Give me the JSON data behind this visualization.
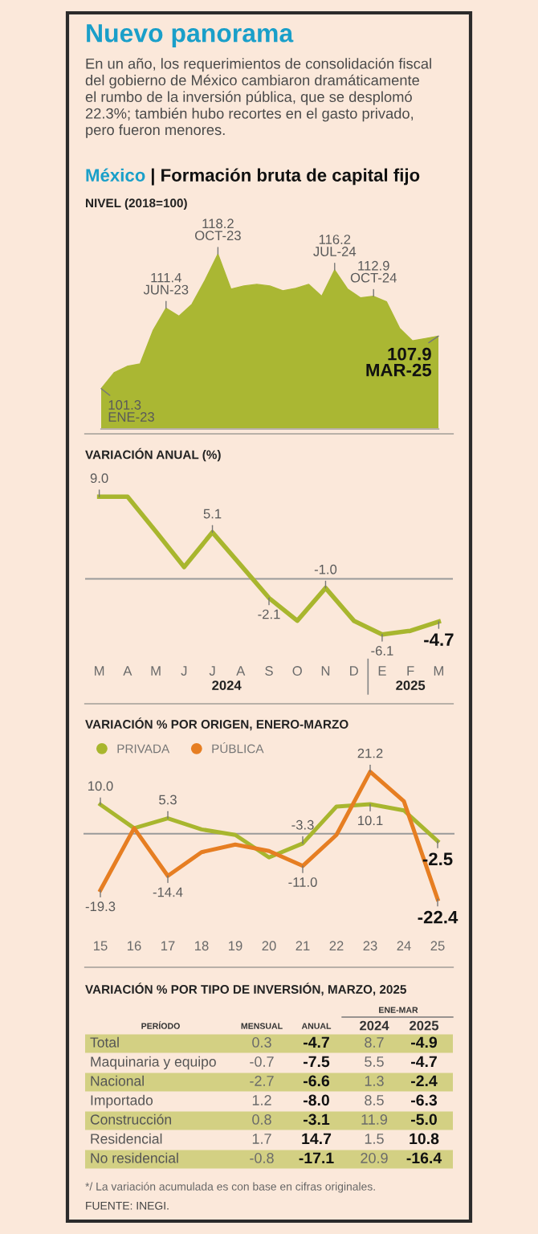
{
  "chart_data": [
    {
      "type": "area",
      "title": "Nuevo panorama",
      "subtitle": "En un año, los requerimientos de consolidación fiscal\ndel gobierno de México cambiaron dramáticamente\nel rumbo de la inversión pública, que se desplomó\n22.3%; también hubo recortes en el gasto privado,\npero fueron menores.",
      "annotations": [
        "México",
        "| Formación bruta de capital fijo"
      ],
      "ylabel": "NIVEL (2018=100)",
      "categories": [
        null,
        null,
        null,
        null,
        null,
        null,
        null,
        null,
        null,
        null,
        null,
        null,
        null,
        null,
        null,
        null,
        null,
        null,
        null,
        null,
        null,
        null,
        null,
        null,
        null,
        null,
        null
      ],
      "values": [
        101.3,
        103.3,
        104.1,
        104.4,
        108.6,
        111.4,
        110.4,
        111.9,
        114.9,
        118.2,
        113.8,
        114.2,
        114.4,
        114.2,
        113.6,
        113.9,
        114.4,
        112.9,
        116.2,
        113.8,
        112.7,
        112.9,
        112.2,
        108.9,
        107.3,
        107.6,
        107.9
      ],
      "value_labels": [
        "101.3\nENE-23",
        null,
        null,
        null,
        null,
        "111.4\nJUN-23",
        null,
        null,
        null,
        "118.2\nOCT-23",
        null,
        null,
        null,
        null,
        null,
        null,
        null,
        null,
        "116.2\nJUL-24",
        null,
        null,
        "112.9\nOCT-24",
        null,
        null,
        null,
        null,
        "107.9\nMAR-25"
      ],
      "color": "#aab733"
    },
    {
      "type": "line",
      "title": "VARIACIÓN ANUAL (%)",
      "categories": [
        "M",
        "A",
        "M",
        "J",
        "J",
        "A",
        "S",
        "O",
        "N",
        "D",
        "E",
        "F",
        "M"
      ],
      "values": [
        9.0,
        9.0,
        5.2,
        1.3,
        5.1,
        1.5,
        -2.1,
        -4.6,
        -1.0,
        -4.6,
        -6.1,
        -5.7,
        -4.7
      ],
      "value_labels": [
        "9.0",
        null,
        null,
        null,
        "5.1",
        null,
        "-2.1",
        null,
        "-1.0",
        null,
        "-6.1",
        null,
        "-4.7"
      ],
      "color": "#a8b62e",
      "ref_lines": [
        {
          "axis": "y",
          "value": 0,
          "color": "#9a9a9a"
        }
      ],
      "annotations": [
        "2024",
        "2025"
      ]
    },
    {
      "type": "line",
      "title": "VARIACIÓN % POR ORIGEN, ENERO-MARZO",
      "categories": [
        "15",
        "16",
        "17",
        "18",
        "19",
        "20",
        "21",
        "22",
        "23",
        "24",
        "25"
      ],
      "series": [
        {
          "name": "PRIVADA",
          "color": "#a8b62e",
          "values": [
            10.0,
            1.9,
            5.3,
            1.5,
            -0.4,
            -8.1,
            -3.3,
            9.3,
            10.1,
            8.0,
            -2.5
          ],
          "value_labels": [
            "10.0",
            null,
            "5.3",
            null,
            null,
            null,
            "-3.3",
            null,
            "10.1",
            null,
            "-2.5"
          ]
        },
        {
          "name": "PÚBLICA",
          "color": "#e67e22",
          "values": [
            -19.3,
            1.9,
            -14.4,
            -6.3,
            -3.7,
            -5.9,
            -11.0,
            -0.4,
            21.2,
            11.1,
            -22.4
          ],
          "value_labels": [
            "-19.3",
            null,
            "-14.4",
            null,
            null,
            null,
            "-11.0",
            null,
            "21.2",
            null,
            "-22.4"
          ]
        }
      ],
      "ref_lines": [
        {
          "axis": "y",
          "value": 0,
          "color": "#9a9a9a"
        }
      ],
      "legend": "top left"
    },
    {
      "type": "other",
      "data_labels": true,
      "title": "VARIACIÓN % POR TIPO DE INVERSIÓN, MARZO, 2025",
      "ylabel": "PERÍODO",
      "categories": [
        "MENSUAL",
        "ANUAL",
        "2024",
        "2025"
      ],
      "y_categories": [
        "Total",
        "Maquinaria y equipo",
        "Nacional",
        "Importado",
        "Construcción",
        "Residencial",
        "No residencial"
      ],
      "cell_labels": [
        [
          "0.3",
          "-4.7",
          "8.7",
          "-4.9"
        ],
        [
          "-0.7",
          "-7.5",
          "5.5",
          "-4.7"
        ],
        [
          "-2.7",
          "-6.6",
          "1.3",
          "-2.4"
        ],
        [
          "1.2",
          "-8.0",
          "8.5",
          "-6.3"
        ],
        [
          "0.8",
          "-3.1",
          "11.9",
          "-5.0"
        ],
        [
          "1.7",
          "14.7",
          "1.5",
          "10.8"
        ],
        [
          "-0.8",
          "-17.1",
          "20.9",
          "-16.4"
        ]
      ],
      "color": "#d3d083",
      "annotations": [
        "ENE-MAR",
        "*/ La variación acumulada es con base en cifras originales.",
        "FUENTE: INEGI."
      ]
    }
  ]
}
